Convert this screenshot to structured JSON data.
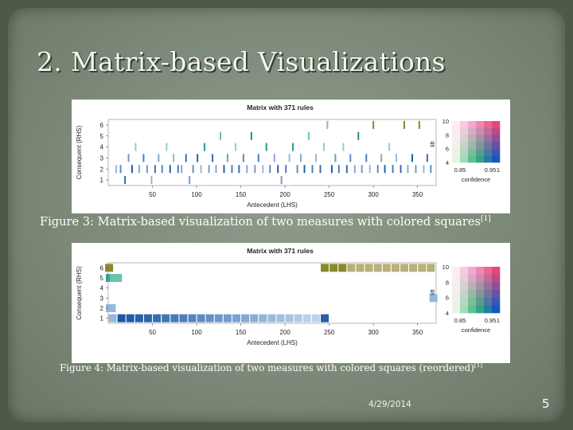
{
  "slide": {
    "title": "2. Matrix-based Visualizations",
    "date": "4/29/2014",
    "page_number": "5"
  },
  "colors": {
    "slide_background": "#4d5a48",
    "panel_background": "#8f9c8c",
    "title_text": "#f5f6f0"
  },
  "figures": [
    {
      "id": "fig3",
      "caption": "Figure 3: Matrix-based visualization of two measures with colored squares",
      "citation": "[1]"
    },
    {
      "id": "fig4",
      "caption": "Figure 4: Matrix-based visualization of two measures with colored squares (reordered)",
      "citation": "[1]"
    }
  ],
  "chart_data": [
    {
      "type": "heatmap",
      "title": "Matrix with 371 rules",
      "xlabel": "Antecedent (LHS)",
      "ylabel": "Consequent (RHS)",
      "xlim": [
        0,
        371
      ],
      "ylim": [
        0.5,
        6.5
      ],
      "x_ticks": [
        50,
        100,
        150,
        200,
        250,
        300,
        350
      ],
      "y_ticks": [
        1,
        2,
        3,
        4,
        5,
        6
      ],
      "legend": {
        "position": "right",
        "vertical_axis_label": "lift",
        "vertical_ticks": [
          4,
          6,
          8,
          10
        ],
        "horizontal_axis_label": "confidence",
        "horizontal_ticks": [
          "0.85",
          "0.95",
          "1"
        ]
      },
      "series": [
        {
          "values": [
            [
              9,
              2,
              0.3
            ],
            [
              14,
              2,
              0.6
            ],
            [
              19,
              1,
              0.8
            ],
            [
              23,
              3,
              0.5
            ],
            [
              27,
              2,
              0.9
            ],
            [
              31,
              4,
              0.6
            ],
            [
              35,
              2,
              0.4
            ],
            [
              40,
              3,
              0.7
            ],
            [
              44,
              2,
              0.5
            ],
            [
              49,
              1,
              0.3
            ],
            [
              53,
              2,
              0.8
            ],
            [
              57,
              3,
              0.4
            ],
            [
              61,
              2,
              0.6
            ],
            [
              66,
              4,
              0.5
            ],
            [
              70,
              2,
              0.9
            ],
            [
              74,
              3,
              0.3
            ],
            [
              79,
              2,
              0.7
            ],
            [
              83,
              2,
              0.4
            ],
            [
              88,
              3,
              0.8
            ],
            [
              92,
              1,
              0.5
            ],
            [
              96,
              2,
              0.6
            ],
            [
              101,
              3,
              0.9
            ],
            [
              105,
              2,
              0.3
            ],
            [
              109,
              4,
              0.7
            ],
            [
              114,
              2,
              0.5
            ],
            [
              118,
              3,
              0.8
            ],
            [
              122,
              2,
              0.4
            ],
            [
              127,
              5,
              0.6
            ],
            [
              131,
              2,
              0.9
            ],
            [
              135,
              3,
              0.5
            ],
            [
              140,
              2,
              0.7
            ],
            [
              144,
              4,
              0.3
            ],
            [
              148,
              2,
              0.8
            ],
            [
              153,
              3,
              0.6
            ],
            [
              157,
              2,
              0.4
            ],
            [
              162,
              5,
              0.9
            ],
            [
              166,
              2,
              0.5
            ],
            [
              170,
              3,
              0.7
            ],
            [
              175,
              2,
              0.3
            ],
            [
              179,
              4,
              0.8
            ],
            [
              183,
              2,
              0.6
            ],
            [
              188,
              3,
              0.4
            ],
            [
              192,
              2,
              0.9
            ],
            [
              196,
              1,
              0.5
            ],
            [
              201,
              2,
              0.7
            ],
            [
              205,
              3,
              0.3
            ],
            [
              209,
              4,
              0.8
            ],
            [
              214,
              2,
              0.6
            ],
            [
              218,
              3,
              0.4
            ],
            [
              222,
              2,
              0.9
            ],
            [
              227,
              5,
              0.5
            ],
            [
              231,
              2,
              0.7
            ],
            [
              235,
              3,
              0.3
            ],
            [
              240,
              2,
              0.8
            ],
            [
              244,
              4,
              0.6
            ],
            [
              248,
              6,
              0.4
            ],
            [
              253,
              2,
              0.9
            ],
            [
              257,
              3,
              0.5
            ],
            [
              261,
              2,
              0.7
            ],
            [
              266,
              4,
              0.3
            ],
            [
              270,
              2,
              0.8
            ],
            [
              274,
              3,
              0.6
            ],
            [
              279,
              2,
              0.4
            ],
            [
              283,
              5,
              0.9
            ],
            [
              287,
              2,
              0.5
            ],
            [
              292,
              3,
              0.7
            ],
            [
              296,
              2,
              0.3
            ],
            [
              300,
              6,
              0.8
            ],
            [
              305,
              2,
              0.6
            ],
            [
              309,
              3,
              0.4
            ],
            [
              313,
              2,
              0.9
            ],
            [
              318,
              4,
              0.5
            ],
            [
              322,
              2,
              0.7
            ],
            [
              326,
              3,
              0.3
            ],
            [
              331,
              2,
              0.8
            ],
            [
              335,
              6,
              0.6
            ],
            [
              339,
              2,
              0.4
            ],
            [
              344,
              3,
              0.9
            ],
            [
              348,
              2,
              0.5
            ],
            [
              352,
              6,
              0.7
            ],
            [
              357,
              2,
              0.3
            ],
            [
              361,
              3,
              0.8
            ],
            [
              365,
              2,
              0.6
            ]
          ]
        }
      ]
    },
    {
      "type": "heatmap",
      "title": "Matrix with 371 rules",
      "xlabel": "Antecedent (LHS)",
      "ylabel": "Consequent (RHS)",
      "xlim": [
        0,
        371
      ],
      "ylim": [
        0.5,
        6.5
      ],
      "x_ticks": [
        50,
        100,
        150,
        200,
        250,
        300,
        350
      ],
      "y_ticks": [
        1,
        2,
        3,
        4,
        5,
        6
      ],
      "legend": {
        "position": "right",
        "vertical_axis_label": "lift",
        "vertical_ticks": [
          4,
          6,
          8,
          10
        ],
        "horizontal_axis_label": "confidence",
        "horizontal_ticks": [
          "0.85",
          "0.95",
          "1"
        ]
      },
      "series": [
        {
          "values": [
            [
              1,
              6,
              0.6
            ],
            [
              2,
              5,
              0.9
            ],
            [
              3,
              5,
              0.8
            ],
            [
              4,
              5,
              0.6
            ],
            [
              5,
              5,
              0.7
            ],
            [
              6,
              5,
              0.5
            ],
            [
              7,
              5,
              0.6
            ],
            [
              8,
              5,
              0.4
            ],
            [
              9,
              5,
              0.5
            ],
            [
              10,
              5,
              0.3
            ],
            [
              11,
              5,
              0.4
            ],
            [
              2,
              2,
              0.3
            ],
            [
              3,
              2,
              0.4
            ],
            [
              4,
              2,
              0.3
            ],
            [
              5,
              1,
              0.3
            ],
            [
              15,
              1,
              0.95
            ],
            [
              25,
              1,
              0.92
            ],
            [
              35,
              1,
              0.88
            ],
            [
              45,
              1,
              0.85
            ],
            [
              55,
              1,
              0.8
            ],
            [
              65,
              1,
              0.76
            ],
            [
              75,
              1,
              0.72
            ],
            [
              85,
              1,
              0.68
            ],
            [
              95,
              1,
              0.64
            ],
            [
              105,
              1,
              0.6
            ],
            [
              115,
              1,
              0.56
            ],
            [
              125,
              1,
              0.52
            ],
            [
              135,
              1,
              0.48
            ],
            [
              145,
              1,
              0.44
            ],
            [
              155,
              1,
              0.4
            ],
            [
              165,
              1,
              0.36
            ],
            [
              175,
              1,
              0.32
            ],
            [
              185,
              1,
              0.28
            ],
            [
              195,
              1,
              0.24
            ],
            [
              205,
              1,
              0.2
            ],
            [
              215,
              1,
              0.16
            ],
            [
              225,
              1,
              0.12
            ],
            [
              235,
              1,
              0.1
            ],
            [
              245,
              1,
              0.9
            ],
            [
              245,
              6,
              0.9
            ],
            [
              255,
              6,
              0.6
            ],
            [
              265,
              6,
              0.55
            ],
            [
              275,
              6,
              0.5
            ],
            [
              285,
              6,
              0.45
            ],
            [
              295,
              6,
              0.4
            ],
            [
              305,
              6,
              0.35
            ],
            [
              315,
              6,
              0.3
            ],
            [
              325,
              6,
              0.25
            ],
            [
              335,
              6,
              0.2
            ],
            [
              345,
              6,
              0.15
            ],
            [
              355,
              6,
              0.12
            ],
            [
              365,
              6,
              0.1
            ],
            [
              368,
              3,
              0.3
            ]
          ]
        }
      ]
    }
  ]
}
